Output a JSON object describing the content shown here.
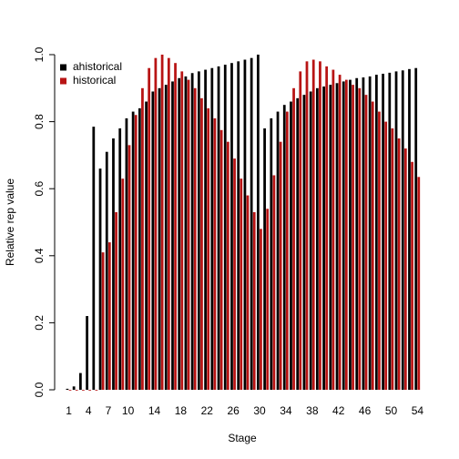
{
  "chart_data": {
    "type": "bar",
    "x_label": "Stage",
    "y_label": "Relative rep value",
    "categories": [
      "1",
      null,
      null,
      "4",
      null,
      null,
      "7",
      null,
      null,
      "10",
      null,
      null,
      null,
      "14",
      null,
      null,
      null,
      "18",
      null,
      null,
      null,
      "22",
      null,
      null,
      null,
      "26",
      null,
      null,
      null,
      "30",
      null,
      null,
      null,
      "34",
      null,
      null,
      null,
      "38",
      null,
      null,
      null,
      "42",
      null,
      null,
      null,
      "46",
      null,
      null,
      null,
      "50",
      null,
      null,
      null,
      "54"
    ],
    "series": [
      {
        "name": "ahistorical",
        "color": "#000000",
        "values": [
          0.003,
          0.01,
          0.05,
          0.22,
          0.785,
          0.66,
          0.71,
          0.75,
          0.78,
          0.81,
          0.83,
          0.84,
          0.86,
          0.89,
          0.9,
          0.91,
          0.92,
          0.93,
          0.935,
          0.945,
          0.95,
          0.955,
          0.96,
          0.965,
          0.97,
          0.975,
          0.98,
          0.985,
          0.99,
          1.0,
          0.78,
          0.81,
          0.83,
          0.85,
          0.86,
          0.87,
          0.88,
          0.89,
          0.9,
          0.905,
          0.91,
          0.915,
          0.92,
          0.925,
          0.93,
          0.932,
          0.935,
          0.94,
          0.943,
          0.946,
          0.95,
          0.953,
          0.957,
          0.96
        ]
      },
      {
        "name": "historical",
        "color": "#b81414",
        "values": [
          0,
          0,
          0,
          0,
          0,
          0.41,
          0.44,
          0.53,
          0.63,
          0.73,
          0.82,
          0.9,
          0.96,
          0.99,
          1.0,
          0.99,
          0.975,
          0.95,
          0.925,
          0.9,
          0.87,
          0.84,
          0.81,
          0.775,
          0.74,
          0.69,
          0.63,
          0.58,
          0.53,
          0.48,
          0.54,
          0.64,
          0.74,
          0.83,
          0.9,
          0.95,
          0.98,
          0.985,
          0.98,
          0.965,
          0.955,
          0.94,
          0.925,
          0.91,
          0.9,
          0.88,
          0.86,
          0.83,
          0.8,
          0.78,
          0.75,
          0.72,
          0.68,
          0.635
        ]
      }
    ],
    "ylim": [
      0,
      1
    ],
    "yticks": [
      {
        "value": 0,
        "label": "0.0"
      },
      0.2,
      0.4,
      0.6,
      0.8,
      {
        "value": 1,
        "label": "1.0"
      }
    ],
    "legend": "top-left"
  }
}
